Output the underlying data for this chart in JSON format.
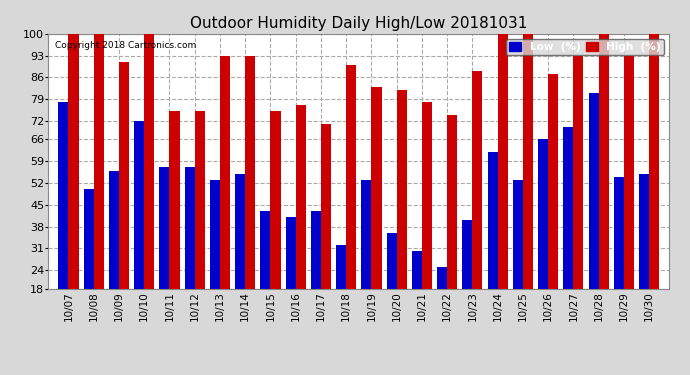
{
  "title": "Outdoor Humidity Daily High/Low 20181031",
  "copyright": "Copyright 2018 Cartronics.com",
  "dates": [
    "10/07",
    "10/08",
    "10/09",
    "10/10",
    "10/11",
    "10/12",
    "10/13",
    "10/14",
    "10/15",
    "10/16",
    "10/17",
    "10/18",
    "10/19",
    "10/20",
    "10/21",
    "10/22",
    "10/23",
    "10/24",
    "10/25",
    "10/26",
    "10/27",
    "10/28",
    "10/29",
    "10/30"
  ],
  "high": [
    100,
    100,
    91,
    100,
    75,
    75,
    93,
    93,
    75,
    77,
    71,
    90,
    83,
    82,
    78,
    74,
    88,
    100,
    100,
    87,
    93,
    100,
    93,
    100
  ],
  "low": [
    78,
    50,
    56,
    72,
    57,
    57,
    53,
    55,
    43,
    41,
    43,
    32,
    53,
    36,
    30,
    25,
    40,
    62,
    53,
    66,
    70,
    81,
    54,
    55
  ],
  "bg_color": "#d8d8d8",
  "plot_bg_color": "#ffffff",
  "bar_low_color": "#0000cc",
  "bar_high_color": "#cc0000",
  "grid_color": "#aaaaaa",
  "title_color": "#000000",
  "ylim_min": 18,
  "ylim_max": 100,
  "yticks": [
    18,
    24,
    31,
    38,
    45,
    52,
    59,
    66,
    72,
    79,
    86,
    93,
    100
  ]
}
